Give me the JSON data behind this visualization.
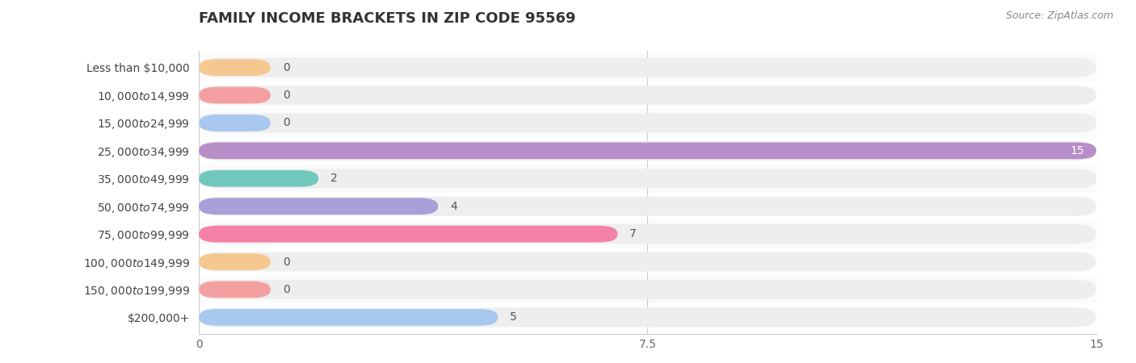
{
  "title": "FAMILY INCOME BRACKETS IN ZIP CODE 95569",
  "source": "Source: ZipAtlas.com",
  "categories": [
    "Less than $10,000",
    "$10,000 to $14,999",
    "$15,000 to $24,999",
    "$25,000 to $34,999",
    "$35,000 to $49,999",
    "$50,000 to $74,999",
    "$75,000 to $99,999",
    "$100,000 to $149,999",
    "$150,000 to $199,999",
    "$200,000+"
  ],
  "values": [
    0,
    0,
    0,
    15,
    2,
    4,
    7,
    0,
    0,
    5
  ],
  "bar_colors": [
    "#F5C890",
    "#F5A0A0",
    "#A8C8F0",
    "#B88EC8",
    "#70C8BC",
    "#A8A0D8",
    "#F580A8",
    "#F5C890",
    "#F5A0A0",
    "#A8C8F0"
  ],
  "xlim": [
    0,
    15
  ],
  "xticks": [
    0,
    7.5,
    15
  ],
  "background_color": "#ffffff",
  "bar_bg_color": "#eeeeee",
  "row_bg_color": "#f7f7f7",
  "title_fontsize": 13,
  "label_fontsize": 10,
  "value_fontsize": 10
}
